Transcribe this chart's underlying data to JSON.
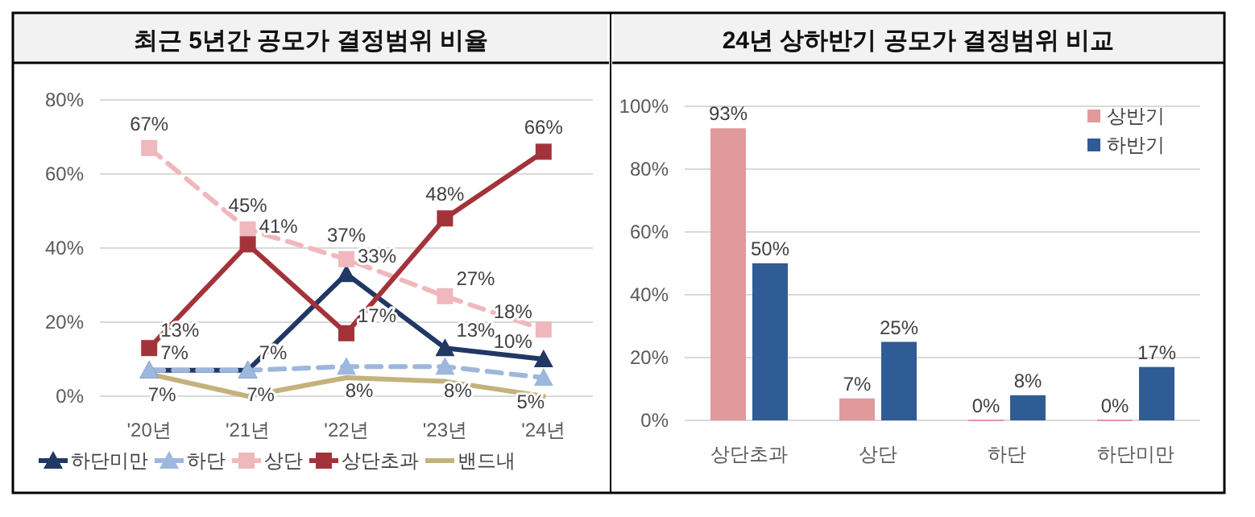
{
  "chart_data": [
    {
      "type": "line",
      "title": "최근 5년간 공모가 결정범위 비율",
      "categories": [
        "'20년",
        "'21년",
        "'22년",
        "'23년",
        "'24년"
      ],
      "ylim": [
        0,
        80
      ],
      "yticks": [
        {
          "value": 0,
          "label": "0%"
        },
        {
          "value": 20,
          "label": "20%"
        },
        {
          "value": 40,
          "label": "40%"
        },
        {
          "value": 60,
          "label": "60%"
        },
        {
          "value": 80,
          "label": "80%"
        }
      ],
      "grid": "y",
      "legend": "bottom",
      "series": [
        {
          "name": "하단미만",
          "color": "#203864",
          "marker": "triangle",
          "line_style": "solid",
          "values": [
            7,
            7,
            33,
            13,
            10
          ],
          "value_labels": [
            "7%",
            "7%",
            "33%",
            "13%",
            "10%"
          ]
        },
        {
          "name": "하단",
          "color": "#9db7dd",
          "marker": "triangle",
          "line_style": "dashed",
          "values": [
            7,
            7,
            8,
            8,
            5
          ],
          "value_labels": [
            "7%",
            "7%",
            "8%",
            "8%",
            "5%"
          ]
        },
        {
          "name": "상단",
          "color": "#f0b8bc",
          "marker": "square",
          "line_style": "dashed",
          "values": [
            67,
            45,
            37,
            27,
            18
          ],
          "value_labels": [
            "67%",
            "45%",
            "37%",
            "27%",
            "18%"
          ]
        },
        {
          "name": "상단초과",
          "color": "#a3333a",
          "marker": "square",
          "line_style": "solid",
          "values": [
            13,
            41,
            17,
            48,
            66
          ],
          "value_labels": [
            "13%",
            "41%",
            "17%",
            "48%",
            "66%"
          ]
        },
        {
          "name": "밴드내",
          "color": "#c4b27c",
          "marker": "none",
          "line_style": "solid",
          "values": [
            6,
            0,
            5,
            4,
            0
          ]
        }
      ]
    },
    {
      "type": "bar",
      "title": "24년 상하반기 공모가 결정범위 비교",
      "categories": [
        "상단초과",
        "상단",
        "하단",
        "하단미만"
      ],
      "ylim": [
        0,
        100
      ],
      "yticks": [
        {
          "value": 0,
          "label": "0%"
        },
        {
          "value": 20,
          "label": "20%"
        },
        {
          "value": 40,
          "label": "40%"
        },
        {
          "value": 60,
          "label": "60%"
        },
        {
          "value": 80,
          "label": "80%"
        },
        {
          "value": 100,
          "label": "100%"
        }
      ],
      "grid": "y",
      "legend": "top right",
      "series": [
        {
          "name": "상반기",
          "color": "#e09a9c",
          "values": [
            93,
            7,
            0,
            0
          ],
          "value_labels": [
            "93%",
            "7%",
            "0%",
            "0%"
          ]
        },
        {
          "name": "하반기",
          "color": "#2f5c94",
          "values": [
            50,
            25,
            8,
            17
          ],
          "value_labels": [
            "50%",
            "25%",
            "8%",
            "17%"
          ]
        }
      ]
    }
  ]
}
